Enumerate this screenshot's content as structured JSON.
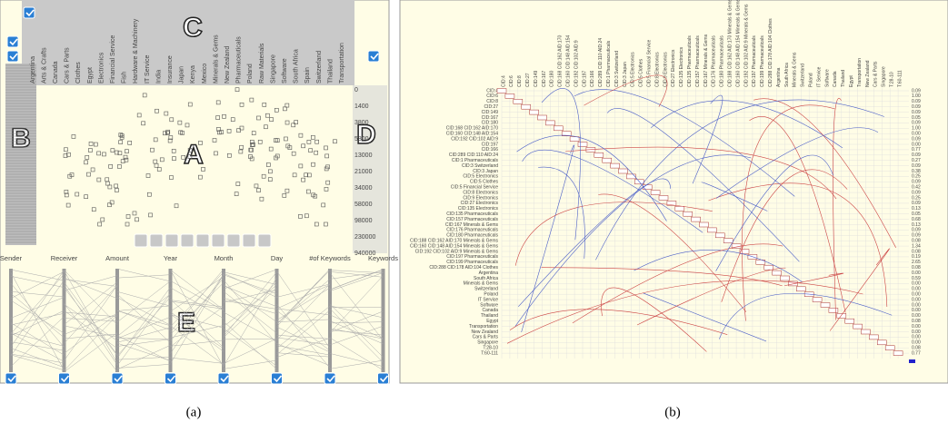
{
  "panel_a": {
    "columns": [
      "Argentina",
      "Arts & Crafts",
      "Canada",
      "Cars & Parts",
      "Clothes",
      "Egypt",
      "Electronics",
      "Financial Service",
      "Fish",
      "Hardware & Machinery",
      "IT Service",
      "India",
      "Insurance",
      "Japan",
      "Kenya",
      "Mexico",
      "Minerals & Gems",
      "New Zealand",
      "Pharmaceuticals",
      "Poland",
      "Raw Materials",
      "Singapore",
      "Software",
      "South Africa",
      "Spain",
      "Switzerland",
      "Thailand",
      "Transportation"
    ],
    "axis_labels": [
      "0",
      "1400",
      "3800",
      "5800",
      "13000",
      "21000",
      "34000",
      "58000",
      "98000",
      "230000",
      "940000"
    ],
    "parallel_axes": [
      "Sender",
      "Receiver",
      "Amount",
      "Year",
      "Month",
      "Day",
      "#of Keywords",
      "Keywords"
    ],
    "letters": {
      "a": "A",
      "b": "B",
      "c": "C",
      "d": "D",
      "e": "E"
    },
    "caption": "(a)"
  },
  "panel_b": {
    "rows": [
      "CID:4",
      "CID:6",
      "CID:8",
      "CID:27",
      "CID:149",
      "CID:167",
      "CID:180",
      "CID:168 CID:162 AID:170",
      "CID:160 CID:148 AID:154",
      "CID:192 CID:102 AID:9",
      "CID:197",
      "CID:166",
      "CID:289 CID:110 AID:24",
      "CID:1 Pharmaceuticals",
      "CID:3 Switzerland",
      "CID:3 Japan",
      "CID:5 Electronics",
      "CID:5 Clothes",
      "CID:5 Financial Service",
      "CID:8 Electronics",
      "CID:9 Electronics",
      "CID:27 Electronics",
      "CID:135 Electronics",
      "CID:135 Pharmaceuticals",
      "CID:157 Pharmaceuticals",
      "CID:167 Minerals & Gems",
      "CID:176 Pharmaceuticals",
      "CID:180 Pharmaceuticals",
      "CID:188 CID:162 AID:170 Minerals & Gems",
      "CID:160 CID:148 AID:154 Minerals & Gems",
      "CID:192 CID:102 AID:9 Minerals & Gems",
      "CID:197 Pharmaceuticals",
      "CID:199 Pharmaceuticals",
      "CID:288 CID:178 AID:104 Clothes",
      "Argentina",
      "South Africa",
      "Minerals & Gems",
      "Switzerland",
      "Poland",
      "IT Service",
      "Software",
      "Canada",
      "Thailand",
      "Egypt",
      "Transportation",
      "New Zealand",
      "Cars & Parts",
      "Singapore",
      "T:28-10",
      "T:60-111"
    ],
    "values": [
      "0.09",
      "1.00",
      "0.09",
      "0.09",
      "0.09",
      "0.05",
      "0.09",
      "1.00",
      "0.00",
      "0.09",
      "0.00",
      "0.77",
      "0.09",
      "0.27",
      "0.09",
      "0.38",
      "0.25",
      "0.09",
      "0.42",
      "0.09",
      "0.25",
      "0.09",
      "0.13",
      "0.05",
      "0.68",
      "0.13",
      "0.09",
      "0.09",
      "0.08",
      "1.34",
      "0.08",
      "0.19",
      "2.65",
      "0.08",
      "0.00",
      "0.59",
      "0.00",
      "0.00",
      "0.00",
      "0.00",
      "0.00",
      "0.00",
      "0.00",
      "0.08",
      "0.00",
      "0.00",
      "0.00",
      "0.00",
      "0.08",
      "0.77"
    ],
    "caption": "(b)"
  }
}
